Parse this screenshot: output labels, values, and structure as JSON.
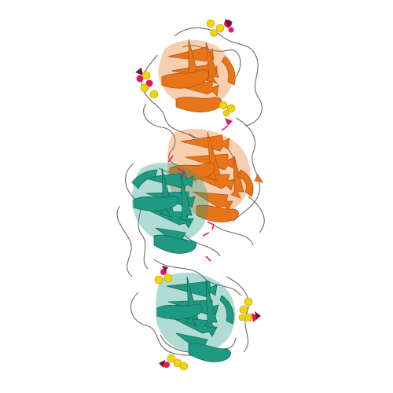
{
  "figure": {
    "kind": "protein-structure-ribbon",
    "background_color": "#ffffff"
  },
  "colors": {
    "chain_a": "#e8751a",
    "chain_a_dark": "#b85410",
    "chain_b": "#1f9a82",
    "chain_b_dark": "#136b5a",
    "coil": "#6a6a6a",
    "ligand_carbon": "#f2d40d",
    "ligand_oxygen": "#e0186a",
    "ligand_dark": "#7a1030"
  }
}
